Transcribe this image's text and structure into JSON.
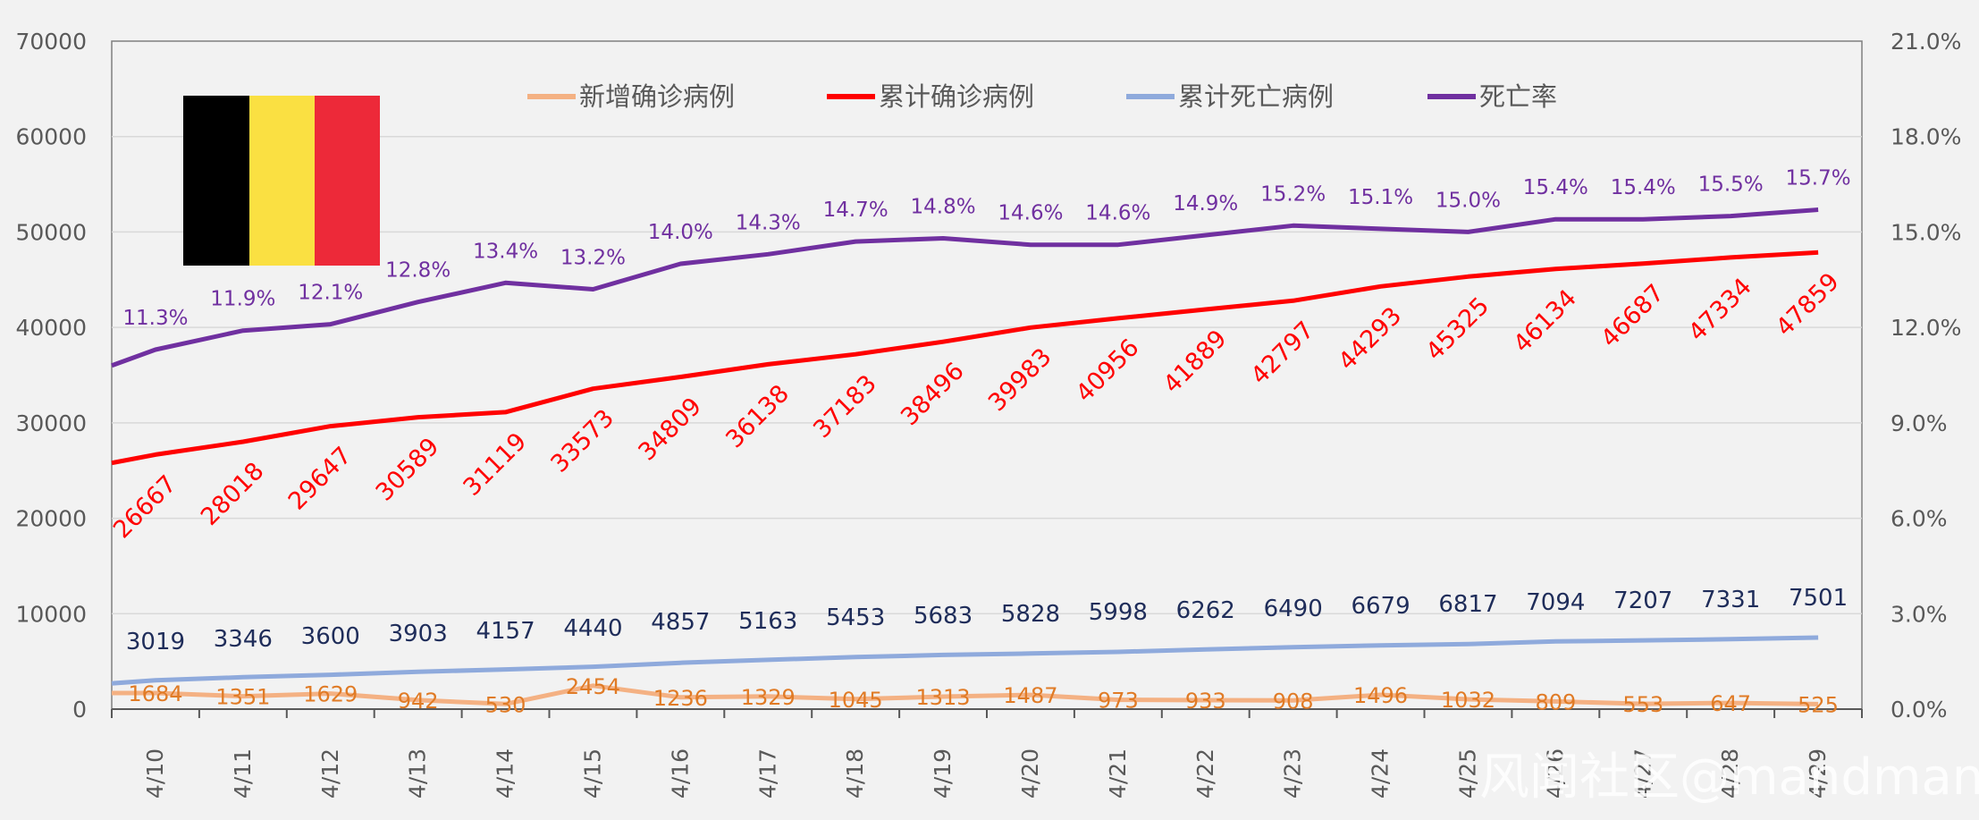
{
  "chart_data": {
    "type": "line",
    "categories": [
      "4/10",
      "4/11",
      "4/12",
      "4/13",
      "4/14",
      "4/15",
      "4/16",
      "4/17",
      "4/18",
      "4/19",
      "4/20",
      "4/21",
      "4/22",
      "4/23",
      "4/24",
      "4/25",
      "4/26",
      "4/27",
      "4/28",
      "4/29"
    ],
    "series": [
      {
        "name": "新增确诊病例",
        "axis": "left",
        "color": "#f4b183",
        "values": [
          1684,
          1351,
          1629,
          942,
          530,
          2454,
          1236,
          1329,
          1045,
          1313,
          1487,
          973,
          933,
          908,
          1496,
          1032,
          809,
          553,
          647,
          525
        ]
      },
      {
        "name": "累计确诊病例",
        "axis": "left",
        "color": "#ff0000",
        "values": [
          26667,
          28018,
          29647,
          30589,
          31119,
          33573,
          34809,
          36138,
          37183,
          38496,
          39983,
          40956,
          41889,
          42797,
          44293,
          45325,
          46134,
          46687,
          47334,
          47859
        ]
      },
      {
        "name": "累计死亡病例",
        "axis": "left",
        "color": "#8faadc",
        "values": [
          3019,
          3346,
          3600,
          3903,
          4157,
          4440,
          4857,
          5163,
          5453,
          5683,
          5828,
          5998,
          6262,
          6490,
          6679,
          6817,
          7094,
          7207,
          7331,
          7501
        ]
      },
      {
        "name": "死亡率",
        "axis": "right",
        "color": "#7030a0",
        "values": [
          11.3,
          11.9,
          12.1,
          12.8,
          13.4,
          13.2,
          14.0,
          14.3,
          14.7,
          14.8,
          14.6,
          14.6,
          14.9,
          15.2,
          15.1,
          15.0,
          15.4,
          15.4,
          15.5,
          15.7
        ],
        "labels": [
          "11.3%",
          "11.9%",
          "12.1%",
          "12.8%",
          "13.4%",
          "13.2%",
          "14.0%",
          "14.3%",
          "14.7%",
          "14.8%",
          "14.6%",
          "14.6%",
          "14.9%",
          "15.2%",
          "15.1%",
          "15.0%",
          "15.4%",
          "15.4%",
          "15.5%",
          "15.7%"
        ]
      }
    ],
    "left_axis": {
      "ylim": [
        0,
        70000
      ],
      "ticks": [
        "0",
        "10000",
        "20000",
        "30000",
        "40000",
        "50000",
        "60000",
        "70000"
      ]
    },
    "right_axis": {
      "ylim": [
        0,
        21
      ],
      "ticks": [
        "0.0%",
        "3.0%",
        "6.0%",
        "9.0%",
        "12.0%",
        "15.0%",
        "18.0%",
        "21.0%"
      ]
    },
    "grid": true,
    "legend_position": "top-center"
  },
  "flag": {
    "colors": [
      "#000000",
      "#fae042",
      "#ed2939"
    ]
  },
  "watermark": "风闻社区@mandman"
}
